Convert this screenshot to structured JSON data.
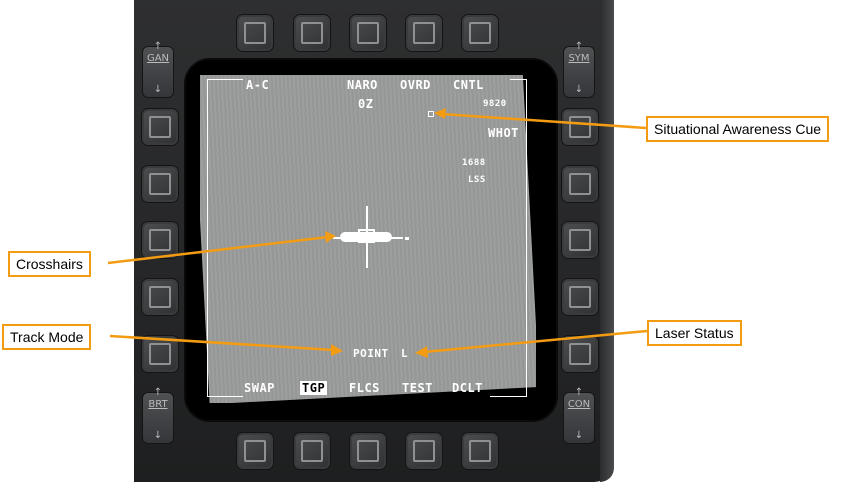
{
  "top_labels": {
    "mode": "A-C",
    "naro": "NARO",
    "ovrd": "OVRD",
    "cntl": "CNTL",
    "heading": "0Z",
    "range": "9820",
    "polarity": "WHOT",
    "laser_code": "1688",
    "lss": "LSS"
  },
  "bottom_labels": {
    "swap": "SWAP",
    "tgp": "TGP",
    "flcs": "FLCS",
    "test": "TEST",
    "dclt": "DCLT"
  },
  "status": {
    "track_mode": "POINT",
    "laser_status": "L"
  },
  "rockers": {
    "gain": "GAN",
    "sym": "SYM",
    "brt": "BRT",
    "con": "CON",
    "arrow_up": "↑",
    "arrow_down": "↓"
  },
  "callouts": {
    "situational_awareness": "Situational Awareness Cue",
    "crosshairs": "Crosshairs",
    "track_mode": "Track Mode",
    "laser_status": "Laser Status"
  },
  "colors": {
    "callout_border": "#f39c12",
    "leader_line": "#f39c12",
    "symbology": "#ffffff",
    "video": "#9a9c9b"
  }
}
